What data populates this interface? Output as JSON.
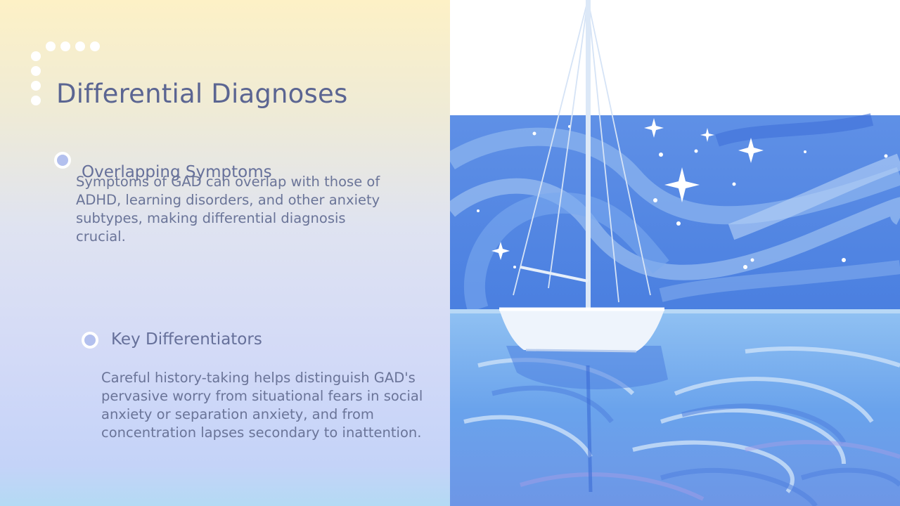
{
  "slide": {
    "title": "Differential Diagnoses",
    "sections": [
      {
        "heading": "Overlapping Symptoms",
        "body": "Symptoms of GAD can overlap with those of ADHD, learning disorders, and other anxiety subtypes, making differential diagnosis crucial."
      },
      {
        "heading": "Key Differentiators",
        "body": "Careful history-taking helps distinguish GAD's pervasive worry from situational fears in social anxiety or separation anxiety, and from concentration lapses secondary to inattention."
      }
    ]
  },
  "image": {
    "icon": "sailboat-starry-sea-painting"
  },
  "colors": {
    "title": "#5b6592",
    "text": "#6a7498",
    "bullet_fill": "#b3c0ee",
    "sea": "#5a93e8"
  }
}
